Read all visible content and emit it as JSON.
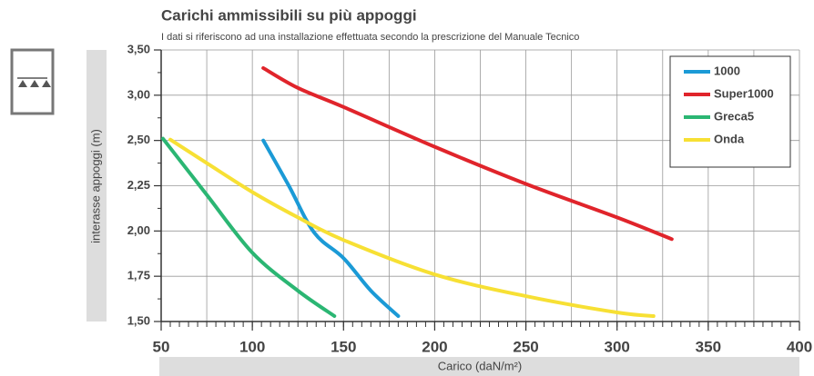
{
  "chart_data": {
    "type": "line",
    "title": "Carichi ammissibili su più appoggi",
    "subtitle": "I dati si riferiscono ad una installazione effettuata secondo la prescrizione del Manuale Tecnico",
    "xlabel": "Carico (daN/m²)",
    "ylabel": "interasse appoggi (m)",
    "xlim": [
      50,
      400
    ],
    "xticks": [
      50,
      100,
      150,
      200,
      250,
      300,
      350,
      400
    ],
    "xgrid_step": 25,
    "xminor_step": 5,
    "ylim": [
      1.5,
      3.5
    ],
    "yscale": "even-ticks",
    "yticks": [
      {
        "value": 1.5,
        "label": "1,50"
      },
      {
        "value": 1.75,
        "label": "1,75"
      },
      {
        "value": 2.0,
        "label": "2,00"
      },
      {
        "value": 2.25,
        "label": "2,25"
      },
      {
        "value": 2.5,
        "label": "2,50"
      },
      {
        "value": 3.0,
        "label": "3,00"
      },
      {
        "value": 3.5,
        "label": "3,50"
      }
    ],
    "grid": true,
    "legend": "top-right",
    "series": [
      {
        "name": "1000",
        "color": "#1b9ad6",
        "x": [
          106,
          120,
          134,
          150,
          165,
          180
        ],
        "values": [
          2.5,
          2.25,
          1.99,
          1.85,
          1.67,
          1.53
        ]
      },
      {
        "name": "Super1000",
        "color": "#e0242b",
        "x": [
          106,
          125,
          150,
          200,
          250,
          300,
          330
        ],
        "values": [
          3.3,
          3.08,
          2.87,
          2.465,
          2.26,
          2.075,
          1.955
        ]
      },
      {
        "name": "Greca5",
        "color": "#2bb673",
        "x": [
          51,
          75,
          100,
          125,
          145
        ],
        "values": [
          2.52,
          2.2,
          1.88,
          1.67,
          1.53
        ]
      },
      {
        "name": "Onda",
        "color": "#f7e034",
        "x": [
          55,
          75,
          100,
          125,
          150,
          200,
          250,
          300,
          320
        ],
        "values": [
          2.51,
          2.375,
          2.215,
          2.075,
          1.95,
          1.76,
          1.64,
          1.55,
          1.53
        ]
      }
    ]
  }
}
